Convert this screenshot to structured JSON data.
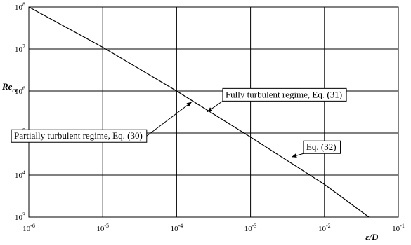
{
  "chart_data": {
    "type": "line",
    "xscale": "log",
    "yscale": "log",
    "xlim": [
      1e-06,
      0.1
    ],
    "ylim": [
      1000.0,
      100000000.0
    ],
    "grid": true,
    "xlabel": {
      "main": "ε/D",
      "sub": ""
    },
    "ylabel": {
      "main": "Re",
      "sub": "cr"
    },
    "xticks": [
      {
        "value": 1e-06,
        "base": "10",
        "exp": "-6"
      },
      {
        "value": 1e-05,
        "base": "10",
        "exp": "-5"
      },
      {
        "value": 0.0001,
        "base": "10",
        "exp": "-4"
      },
      {
        "value": 0.001,
        "base": "10",
        "exp": "-3"
      },
      {
        "value": 0.01,
        "base": "10",
        "exp": "-2"
      },
      {
        "value": 0.1,
        "base": "10",
        "exp": "-1"
      }
    ],
    "yticks": [
      {
        "value": 1000.0,
        "base": "10",
        "exp": "3"
      },
      {
        "value": 10000.0,
        "base": "10",
        "exp": "4"
      },
      {
        "value": 100000.0,
        "base": "10",
        "exp": "5"
      },
      {
        "value": 1000000.0,
        "base": "10",
        "exp": "6"
      },
      {
        "value": 10000000.0,
        "base": "10",
        "exp": "7"
      },
      {
        "value": 100000000.0,
        "base": "10",
        "exp": "8"
      }
    ],
    "series": [
      {
        "x": [
          1e-06,
          1e-05,
          0.0001,
          0.001,
          0.01,
          0.04
        ],
        "y": [
          100000000.0,
          11000000.0,
          1000000.0,
          80000.0,
          6000.0,
          1000.0
        ]
      }
    ],
    "annotations": [
      {
        "text": "Partially turbulent regime, Eq. (30)",
        "box": [
          5.8e-07,
          120000.0
        ],
        "target": [
          0.00016,
          550000.0
        ]
      },
      {
        "text": "Fully turbulent regime, Eq. (31)",
        "box": [
          0.00042,
          1150000.0
        ],
        "target": [
          0.00026,
          320000.0
        ]
      },
      {
        "text": "Eq. (32)",
        "box": [
          0.0052,
          65000.0
        ],
        "target": [
          0.0036,
          27000.0
        ]
      }
    ]
  }
}
